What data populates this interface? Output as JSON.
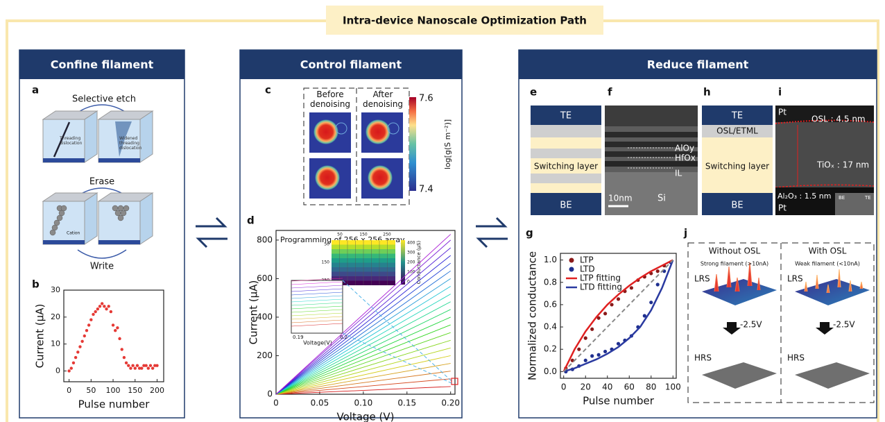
{
  "banner": {
    "title": "Intra-device Nanoscale Optimization Path"
  },
  "panels": [
    {
      "title": "Confine filament",
      "a": {
        "label": "a",
        "selective_etch": "Selective etch",
        "threading": "Threading dislocation",
        "widened": "Widened threading dislocation",
        "erase": "Erase",
        "cation": "Cation",
        "write": "Write"
      },
      "b": {
        "label": "b",
        "chart": {
          "type": "scatter",
          "xlabel": "Pulse number",
          "ylabel": "Current (μA)",
          "x": [
            0,
            5,
            10,
            15,
            20,
            25,
            30,
            35,
            40,
            45,
            50,
            55,
            60,
            65,
            70,
            75,
            80,
            85,
            90,
            95,
            100,
            105,
            110,
            115,
            120,
            125,
            130,
            135,
            140,
            145,
            150,
            155,
            160,
            165,
            170,
            175,
            180,
            185,
            190,
            195,
            200
          ],
          "series": [
            {
              "color": "#e53935",
              "style": "points",
              "values": [
                0,
                1,
                3,
                5,
                7,
                9,
                11,
                13,
                15,
                17,
                19,
                21,
                22,
                23,
                24,
                25,
                24,
                23,
                24,
                22,
                17,
                15,
                16,
                12,
                8,
                5,
                3,
                2,
                1,
                2,
                1,
                2,
                1,
                1,
                2,
                2,
                1,
                2,
                1,
                2,
                2
              ]
            }
          ],
          "xlim": [
            -12,
            215
          ],
          "xticks": [
            0,
            50,
            100,
            150,
            200
          ],
          "ylim": [
            -4,
            30
          ],
          "yticks": [
            0,
            10,
            20,
            30
          ]
        }
      }
    },
    {
      "title": "Control filament",
      "c": {
        "label": "c",
        "before": "Before denoising",
        "after": "After denoising",
        "colorbar_ticks": [
          7.6,
          7.4
        ],
        "colorbar_label": "log[g(S m⁻²)]"
      },
      "d": {
        "label": "d",
        "chart": {
          "type": "line",
          "xlabel": "Voltage (V)",
          "ylabel": "Current (μA)",
          "x": [
            0,
            0.2
          ],
          "series": [
            {
              "values": [
                0,
                40
              ]
            },
            {
              "values": [
                0,
                80
              ]
            },
            {
              "values": [
                0,
                120
              ]
            },
            {
              "values": [
                0,
                160
              ]
            },
            {
              "values": [
                0,
                200
              ]
            },
            {
              "values": [
                0,
                240
              ]
            },
            {
              "values": [
                0,
                280
              ]
            },
            {
              "values": [
                0,
                320
              ]
            },
            {
              "values": [
                0,
                360
              ]
            },
            {
              "values": [
                0,
                400
              ]
            },
            {
              "values": [
                0,
                440
              ]
            },
            {
              "values": [
                0,
                480
              ]
            },
            {
              "values": [
                0,
                520
              ]
            },
            {
              "values": [
                0,
                560
              ]
            },
            {
              "values": [
                0,
                600
              ]
            },
            {
              "values": [
                0,
                640
              ]
            },
            {
              "values": [
                0,
                680
              ]
            },
            {
              "values": [
                0,
                720
              ]
            },
            {
              "values": [
                0,
                760
              ]
            },
            {
              "values": [
                0,
                800
              ]
            },
            {
              "values": [
                0,
                830
              ]
            }
          ],
          "xlim": [
            0,
            0.205
          ],
          "xticks": [
            0,
            0.05,
            {
              "value": 0.1,
              "label": "0.10"
            },
            0.15,
            {
              "value": 0.2,
              "label": "0.20"
            }
          ],
          "ylim": [
            0,
            850
          ],
          "yticks": [
            0,
            200,
            400,
            600,
            800
          ]
        },
        "inset_title": "Programming of 256 x 256 array",
        "inset_map_xticks": [
          50,
          150,
          250
        ],
        "inset_map_yticks": [
          50,
          150,
          250
        ],
        "inset_colorbar_ticks": [
          400,
          300,
          200,
          100,
          0
        ],
        "inset_colorbar_label": "Conductance (μS)",
        "inset_x_ticks": [
          0.19,
          0.2
        ],
        "inset_x_label": "Voltage(V)"
      }
    },
    {
      "title": "Reduce filament",
      "e": {
        "label": "e",
        "top": "TE",
        "middle": "Switching layer",
        "bottom": "BE"
      },
      "f": {
        "label": "f",
        "layers": [
          "AlOy",
          "HfOx",
          "IL"
        ],
        "scale": "10nm",
        "substrate": "Si"
      },
      "g": {
        "label": "g",
        "chart": {
          "type": "scatter",
          "xlabel": "Pulse number",
          "ylabel": "Normalized conductance",
          "legend": "upper left",
          "series": [
            {
              "name": "LTP",
              "color": "#8b1a1a",
              "style": "points",
              "x": [
                2,
                8,
                14,
                20,
                26,
                32,
                38,
                44,
                50,
                56,
                62,
                68,
                74,
                80,
                86,
                92,
                98
              ],
              "values": [
                0.03,
                0.1,
                0.2,
                0.3,
                0.38,
                0.48,
                0.52,
                0.6,
                0.65,
                0.72,
                0.75,
                0.82,
                0.85,
                0.88,
                0.9,
                0.95,
                0.98
              ]
            },
            {
              "name": "LTD",
              "color": "#1f2f8f",
              "style": "points",
              "x": [
                2,
                8,
                14,
                20,
                26,
                32,
                38,
                44,
                50,
                56,
                62,
                68,
                74,
                80,
                86,
                92,
                98
              ],
              "values": [
                0,
                0.02,
                0.05,
                0.1,
                0.14,
                0.15,
                0.18,
                0.2,
                0.25,
                0.28,
                0.32,
                0.4,
                0.5,
                0.62,
                0.78,
                0.9,
                0.98
              ]
            },
            {
              "name": "LTP fitting",
              "color": "#e02020",
              "style": "line",
              "x": [
                0,
                10,
                20,
                30,
                40,
                50,
                60,
                70,
                80,
                90,
                100
              ],
              "values": [
                0,
                0.2,
                0.36,
                0.49,
                0.6,
                0.69,
                0.77,
                0.84,
                0.9,
                0.95,
                1
              ]
            },
            {
              "name": "LTD fitting",
              "color": "#2a3aa0",
              "style": "line",
              "x": [
                0,
                10,
                20,
                30,
                40,
                50,
                60,
                70,
                80,
                90,
                100
              ],
              "values": [
                0,
                0.03,
                0.07,
                0.11,
                0.16,
                0.22,
                0.3,
                0.4,
                0.55,
                0.75,
                1
              ]
            },
            {
              "color": "#888888",
              "style": "dashed",
              "x": [
                0,
                100
              ],
              "values": [
                0,
                1
              ]
            }
          ],
          "xlim": [
            -3,
            103
          ],
          "xticks": [
            0,
            20,
            40,
            60,
            80,
            100
          ],
          "ylim": [
            -0.06,
            1.06
          ],
          "yticks": [
            {
              "value": 0,
              "label": "0.0"
            },
            0.2,
            0.4,
            0.6,
            0.8,
            {
              "value": 1,
              "label": "1.0"
            }
          ]
        }
      },
      "h": {
        "label": "h",
        "top": "TE",
        "osl": "OSL/ETML",
        "middle": "Switching layer",
        "bottom": "BE"
      },
      "i": {
        "label": "i",
        "pt_top": "Pt",
        "osl": "OSL : 4.5 nm",
        "tiox": "TiOₓ : 17 nm",
        "al2o3": "Al₂O₃ : 1.5 nm",
        "pt_bottom": "Pt",
        "be": "BE",
        "te": "TE"
      },
      "j": {
        "label": "j",
        "columns": [
          {
            "title": "Without OSL",
            "note": "Strong filament (>10nA)",
            "lrs": "LRS",
            "bias": "-2.5V",
            "hrs": "HRS"
          },
          {
            "title": "With OSL",
            "note": "Weak filament (<10nA)",
            "lrs": "LRS",
            "bias": "-2.5V",
            "hrs": "HRS"
          }
        ]
      }
    }
  ]
}
